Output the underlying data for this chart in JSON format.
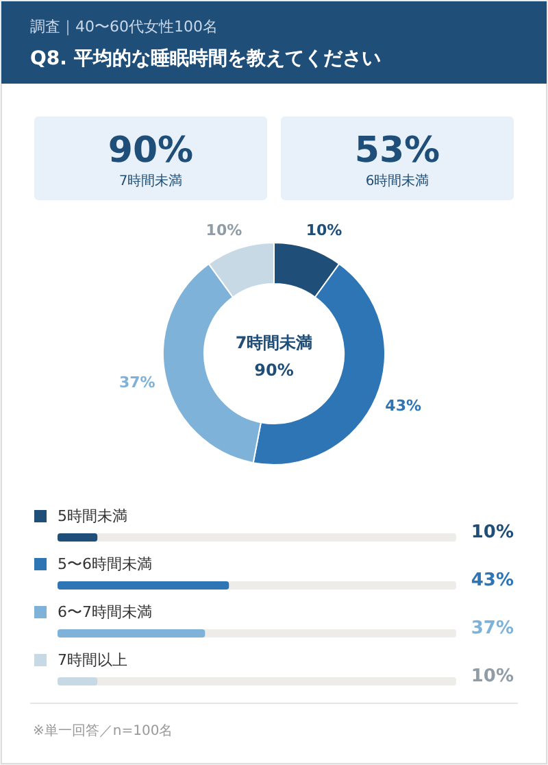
{
  "chart_data": [
    {
      "type": "other",
      "title": "Q8. 平均的な睡眠時間を教えてください",
      "subtitle": "調査｜40〜60代女性100名",
      "annotations": [
        "90%",
        "7時間未満",
        "53%",
        "6時間未満"
      ]
    },
    {
      "type": "donut",
      "categories": [
        null,
        null,
        null,
        null
      ],
      "values": [
        10,
        43,
        37,
        10
      ],
      "colors": [
        "#1f4e79",
        "#2e75b6",
        "#7fb2d9",
        "#c8d9e6"
      ],
      "value_labels": [
        "10%",
        "43%",
        "37%",
        "10%"
      ],
      "annotations": [
        "7時間未満",
        "90%"
      ]
    },
    {
      "type": "bar",
      "orientation": "horizontal",
      "categories": [
        "5時間未満",
        "5〜6時間未満",
        "6〜7時間未満",
        "7時間以上"
      ],
      "values": [
        10,
        43,
        37,
        10
      ],
      "colors": [
        "#1f4e79",
        "#2e75b6",
        "#7fb2d9",
        "#c8d9e6"
      ],
      "value_labels": [
        "10%",
        "43%",
        "37%",
        "10%"
      ],
      "annotations": [
        "※単一回答／n=100名"
      ]
    }
  ]
}
